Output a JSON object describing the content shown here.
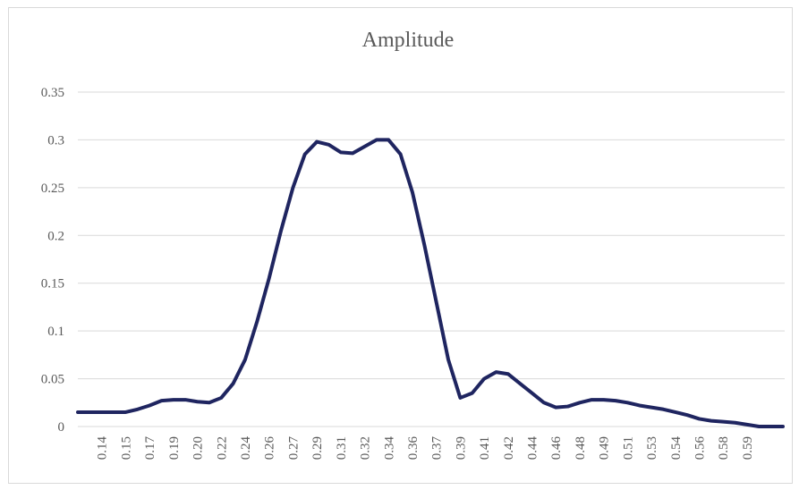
{
  "chart_data": {
    "type": "line",
    "title": "Amplitude",
    "categories": [
      null,
      null,
      "0.14",
      null,
      "0.15",
      null,
      "0.17",
      null,
      "0.19",
      null,
      "0.20",
      null,
      "0.22",
      null,
      "0.24",
      null,
      "0.26",
      null,
      "0.27",
      null,
      "0.29",
      null,
      "0.31",
      null,
      "0.32",
      null,
      "0.34",
      null,
      "0.36",
      null,
      "0.37",
      null,
      "0.39",
      null,
      "0.41",
      null,
      "0.42",
      null,
      "0.44",
      null,
      "0.46",
      null,
      "0.48",
      null,
      "0.49",
      null,
      "0.51",
      null,
      "0.53",
      null,
      "0.54",
      null,
      "0.56",
      null,
      "0.58",
      null,
      "0.59",
      null,
      null,
      null
    ],
    "series": [
      {
        "name": "Amplitude",
        "color": "#1f2560",
        "values": [
          0.015,
          0.015,
          0.015,
          0.015,
          0.015,
          0.018,
          0.022,
          0.027,
          0.028,
          0.028,
          0.026,
          0.025,
          0.03,
          0.045,
          0.07,
          0.11,
          0.155,
          0.205,
          0.25,
          0.285,
          0.298,
          0.295,
          0.287,
          0.286,
          0.293,
          0.3,
          0.3,
          0.285,
          0.245,
          0.19,
          0.13,
          0.07,
          0.03,
          0.035,
          0.05,
          0.057,
          0.055,
          0.045,
          0.035,
          0.025,
          0.02,
          0.021,
          0.025,
          0.028,
          0.028,
          0.027,
          0.025,
          0.022,
          0.02,
          0.018,
          0.015,
          0.012,
          0.008,
          0.006,
          0.005,
          0.004,
          0.002,
          0,
          0,
          0
        ]
      }
    ],
    "ylim": [
      0,
      0.35
    ],
    "yticks": [
      0,
      0.05,
      0.1,
      0.15,
      0.2,
      0.25,
      0.3,
      0.35
    ],
    "grid": true
  }
}
